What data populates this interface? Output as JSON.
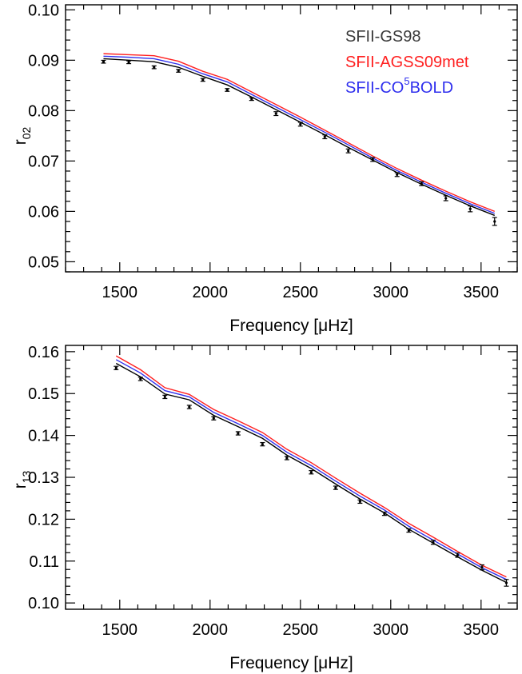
{
  "chart_data": [
    {
      "type": "line",
      "xlabel": "Frequency [μHz]",
      "ylabel": "r",
      "ylabel_sub": "02",
      "xlim": [
        1200,
        3700
      ],
      "ylim": [
        0.048,
        0.101
      ],
      "x_major_ticks": [
        1500,
        2000,
        2500,
        3000,
        3500
      ],
      "x_tick_labels": [
        "1500",
        "2000",
        "2500",
        "3000",
        "3500"
      ],
      "x_minor_step": 100,
      "y_major_ticks": [
        0.05,
        0.06,
        0.07,
        0.08,
        0.09,
        0.1
      ],
      "y_tick_labels": [
        "0.05",
        "0.06",
        "0.07",
        "0.08",
        "0.09",
        "0.10"
      ],
      "y_minor_step": 0.002,
      "grid": false,
      "legend": {
        "placement": "top-right",
        "entries": [
          {
            "text": "SFII-GS98",
            "color": "#3a3a3a"
          },
          {
            "text_before": "SFII-AGSS09met",
            "color": "#ff2020"
          },
          {
            "text_before": "SFII-CO",
            "sup": "5",
            "text_after": "BOLD",
            "color": "#3030ee"
          }
        ]
      },
      "series": [
        {
          "color": "#ff2020",
          "x": [
            1410,
            1550,
            1690,
            1825,
            1960,
            2095,
            2230,
            2365,
            2500,
            2635,
            2765,
            2900,
            3035,
            3170,
            3305,
            3440,
            3575
          ],
          "y": [
            0.0913,
            0.0911,
            0.0909,
            0.0898,
            0.0878,
            0.0862,
            0.0837,
            0.0812,
            0.0787,
            0.0761,
            0.0736,
            0.071,
            0.0685,
            0.0662,
            0.064,
            0.0619,
            0.06
          ]
        },
        {
          "color": "#3030ee",
          "x": [
            1410,
            1550,
            1690,
            1825,
            1960,
            2095,
            2230,
            2365,
            2500,
            2635,
            2765,
            2900,
            3035,
            3170,
            3305,
            3440,
            3575
          ],
          "y": [
            0.0908,
            0.0906,
            0.0903,
            0.0892,
            0.0873,
            0.0857,
            0.0832,
            0.0807,
            0.0782,
            0.0757,
            0.0732,
            0.0706,
            0.0681,
            0.0658,
            0.0636,
            0.0615,
            0.0596
          ]
        },
        {
          "color": "#000000",
          "x": [
            1410,
            1550,
            1690,
            1825,
            1960,
            2095,
            2230,
            2365,
            2500,
            2635,
            2765,
            2900,
            3035,
            3170,
            3305,
            3440,
            3575
          ],
          "y": [
            0.0903,
            0.09,
            0.0897,
            0.0886,
            0.0868,
            0.0851,
            0.0827,
            0.0802,
            0.0777,
            0.0752,
            0.0727,
            0.0702,
            0.0677,
            0.0654,
            0.0632,
            0.0611,
            0.0592
          ]
        }
      ],
      "observations": {
        "color": "#000000",
        "x": [
          1410,
          1550,
          1690,
          1825,
          1960,
          2095,
          2230,
          2365,
          2500,
          2635,
          2765,
          2900,
          3035,
          3170,
          3305,
          3440,
          3575
        ],
        "y": [
          0.0897,
          0.0896,
          0.0886,
          0.0879,
          0.0861,
          0.0841,
          0.0823,
          0.0794,
          0.0773,
          0.0748,
          0.072,
          0.0703,
          0.0673,
          0.0655,
          0.0626,
          0.0605,
          0.058
        ],
        "err": [
          0.0002,
          0.0002,
          0.0002,
          0.0002,
          0.0002,
          0.0002,
          0.0002,
          0.0003,
          0.0003,
          0.0003,
          0.0003,
          0.0003,
          0.0003,
          0.0003,
          0.0004,
          0.0005,
          0.0007
        ]
      }
    },
    {
      "type": "line",
      "xlabel": "Frequency [μHz]",
      "ylabel": "r",
      "ylabel_sub": "13",
      "xlim": [
        1200,
        3700
      ],
      "ylim": [
        0.0985,
        0.1615
      ],
      "x_major_ticks": [
        1500,
        2000,
        2500,
        3000,
        3500
      ],
      "x_tick_labels": [
        "1500",
        "2000",
        "2500",
        "3000",
        "3500"
      ],
      "x_minor_step": 100,
      "y_major_ticks": [
        0.1,
        0.11,
        0.12,
        0.13,
        0.14,
        0.15,
        0.16
      ],
      "y_tick_labels": [
        "0.10",
        "0.11",
        "0.12",
        "0.13",
        "0.14",
        "0.15",
        "0.16"
      ],
      "y_minor_step": 0.002,
      "grid": false,
      "series": [
        {
          "color": "#ff2020",
          "x": [
            1480,
            1615,
            1750,
            1885,
            2020,
            2155,
            2290,
            2425,
            2560,
            2695,
            2830,
            2965,
            3100,
            3235,
            3370,
            3505,
            3640
          ],
          "y": [
            0.159,
            0.1557,
            0.1514,
            0.1498,
            0.1462,
            0.1435,
            0.1407,
            0.1367,
            0.1335,
            0.1298,
            0.1262,
            0.1228,
            0.119,
            0.1157,
            0.1123,
            0.109,
            0.1062
          ]
        },
        {
          "color": "#3030ee",
          "x": [
            1480,
            1615,
            1750,
            1885,
            2020,
            2155,
            2290,
            2425,
            2560,
            2695,
            2830,
            2965,
            3100,
            3235,
            3370,
            3505,
            3640
          ],
          "y": [
            0.1581,
            0.1549,
            0.1507,
            0.1492,
            0.1455,
            0.1428,
            0.14,
            0.136,
            0.1328,
            0.1291,
            0.1255,
            0.1222,
            0.1183,
            0.115,
            0.1117,
            0.1084,
            0.1056
          ]
        },
        {
          "color": "#000000",
          "x": [
            1480,
            1615,
            1750,
            1885,
            2020,
            2155,
            2290,
            2425,
            2560,
            2695,
            2830,
            2965,
            3100,
            3235,
            3370,
            3505,
            3640
          ],
          "y": [
            0.1572,
            0.154,
            0.1499,
            0.1485,
            0.1448,
            0.1421,
            0.1393,
            0.1353,
            0.1321,
            0.1284,
            0.1248,
            0.1215,
            0.1176,
            0.1143,
            0.111,
            0.1078,
            0.1049
          ]
        }
      ],
      "observations": {
        "color": "#000000",
        "x": [
          1480,
          1615,
          1750,
          1885,
          2020,
          2155,
          2290,
          2425,
          2560,
          2695,
          2830,
          2965,
          3100,
          3235,
          3370,
          3505,
          3640
        ],
        "y": [
          0.1561,
          0.1535,
          0.1492,
          0.1468,
          0.1441,
          0.1405,
          0.1379,
          0.1346,
          0.1312,
          0.1275,
          0.1242,
          0.1213,
          0.1173,
          0.1145,
          0.1114,
          0.1085,
          0.1048
        ],
        "err": [
          0.0003,
          0.0003,
          0.0003,
          0.0003,
          0.0003,
          0.0003,
          0.0003,
          0.0003,
          0.0003,
          0.0003,
          0.0003,
          0.0003,
          0.0003,
          0.0004,
          0.0004,
          0.0005,
          0.0007
        ]
      }
    }
  ]
}
